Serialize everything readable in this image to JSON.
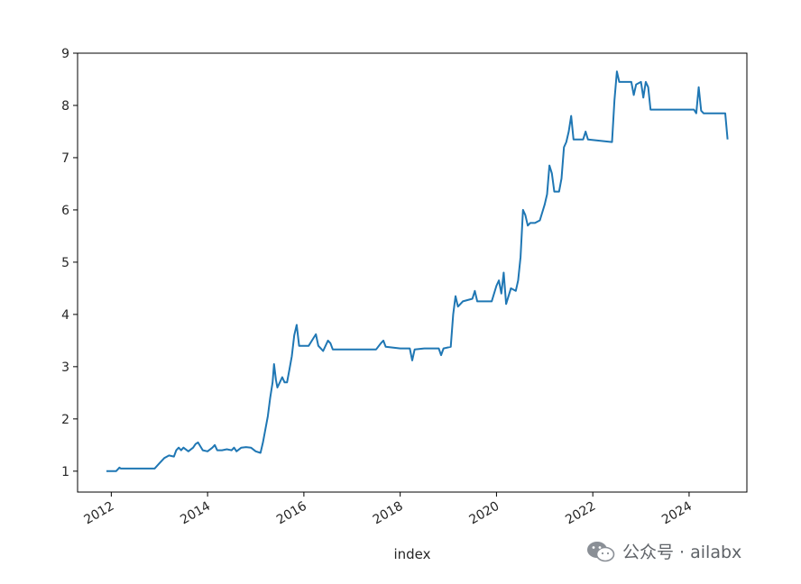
{
  "chart_data": {
    "type": "line",
    "title": "",
    "xlabel": "index",
    "ylabel": "",
    "xlim": [
      2011.3,
      2025.2
    ],
    "ylim": [
      0.6,
      9.0
    ],
    "x_ticks": [
      2012,
      2014,
      2016,
      2018,
      2020,
      2022,
      2024
    ],
    "x_tick_labels": [
      "2012",
      "2014",
      "2016",
      "2018",
      "2020",
      "2022",
      "2024"
    ],
    "y_ticks": [
      1,
      2,
      3,
      4,
      5,
      6,
      7,
      8,
      9
    ],
    "y_tick_labels": [
      "1",
      "2",
      "3",
      "4",
      "5",
      "6",
      "7",
      "8",
      "9"
    ],
    "grid": false,
    "series": [
      {
        "color": "#1f77b4",
        "x": [
          2011.9,
          2012.1,
          2012.15,
          2012.17,
          2012.2,
          2012.9,
          2013.0,
          2013.1,
          2013.2,
          2013.3,
          2013.35,
          2013.4,
          2013.45,
          2013.5,
          2013.6,
          2013.7,
          2013.75,
          2013.8,
          2013.9,
          2014.0,
          2014.1,
          2014.15,
          2014.2,
          2014.3,
          2014.4,
          2014.5,
          2014.55,
          2014.6,
          2014.7,
          2014.8,
          2014.9,
          2015.0,
          2015.1,
          2015.15,
          2015.2,
          2015.25,
          2015.3,
          2015.35,
          2015.38,
          2015.42,
          2015.45,
          2015.5,
          2015.55,
          2015.6,
          2015.65,
          2015.7,
          2015.75,
          2015.8,
          2015.85,
          2015.9,
          2016.0,
          2016.1,
          2016.2,
          2016.25,
          2016.3,
          2016.35,
          2016.4,
          2016.5,
          2016.55,
          2016.6,
          2017.5,
          2017.6,
          2017.65,
          2017.7,
          2018.0,
          2018.2,
          2018.25,
          2018.3,
          2018.5,
          2018.8,
          2018.85,
          2018.9,
          2019.05,
          2019.1,
          2019.15,
          2019.2,
          2019.3,
          2019.5,
          2019.55,
          2019.6,
          2019.8,
          2019.9,
          2020.0,
          2020.05,
          2020.1,
          2020.15,
          2020.2,
          2020.3,
          2020.4,
          2020.45,
          2020.5,
          2020.55,
          2020.6,
          2020.65,
          2020.7,
          2020.8,
          2020.9,
          2021.0,
          2021.05,
          2021.1,
          2021.15,
          2021.2,
          2021.3,
          2021.35,
          2021.4,
          2021.45,
          2021.5,
          2021.55,
          2021.6,
          2021.8,
          2021.85,
          2021.9,
          2022.4,
          2022.45,
          2022.5,
          2022.55,
          2022.6,
          2022.8,
          2022.85,
          2022.9,
          2023.0,
          2023.05,
          2023.1,
          2023.15,
          2023.2,
          2024.1,
          2024.15,
          2024.2,
          2024.25,
          2024.3,
          2024.75,
          2024.8
        ],
        "values": [
          1.0,
          1.0,
          1.05,
          1.07,
          1.05,
          1.05,
          1.15,
          1.25,
          1.3,
          1.28,
          1.4,
          1.45,
          1.4,
          1.45,
          1.38,
          1.45,
          1.52,
          1.55,
          1.4,
          1.38,
          1.45,
          1.5,
          1.4,
          1.4,
          1.42,
          1.4,
          1.45,
          1.38,
          1.45,
          1.46,
          1.45,
          1.38,
          1.35,
          1.55,
          1.8,
          2.05,
          2.4,
          2.7,
          3.05,
          2.75,
          2.6,
          2.7,
          2.8,
          2.7,
          2.7,
          2.95,
          3.2,
          3.6,
          3.8,
          3.4,
          3.4,
          3.4,
          3.55,
          3.62,
          3.4,
          3.35,
          3.3,
          3.5,
          3.45,
          3.33,
          3.33,
          3.45,
          3.5,
          3.38,
          3.35,
          3.35,
          3.12,
          3.33,
          3.35,
          3.35,
          3.22,
          3.35,
          3.38,
          4.0,
          4.35,
          4.15,
          4.25,
          4.3,
          4.45,
          4.25,
          4.25,
          4.25,
          4.55,
          4.65,
          4.4,
          4.8,
          4.2,
          4.5,
          4.45,
          4.65,
          5.1,
          6.0,
          5.9,
          5.7,
          5.75,
          5.75,
          5.8,
          6.1,
          6.3,
          6.85,
          6.7,
          6.35,
          6.35,
          6.6,
          7.2,
          7.3,
          7.5,
          7.8,
          7.35,
          7.35,
          7.5,
          7.35,
          7.3,
          8.1,
          8.65,
          8.45,
          8.45,
          8.45,
          8.2,
          8.4,
          8.45,
          8.15,
          8.45,
          8.35,
          7.92,
          7.92,
          7.85,
          8.35,
          7.9,
          7.85,
          7.85,
          7.35
        ]
      }
    ]
  },
  "watermark": {
    "icon": "wechat-icon",
    "text": "公众号 · ailabx"
  }
}
